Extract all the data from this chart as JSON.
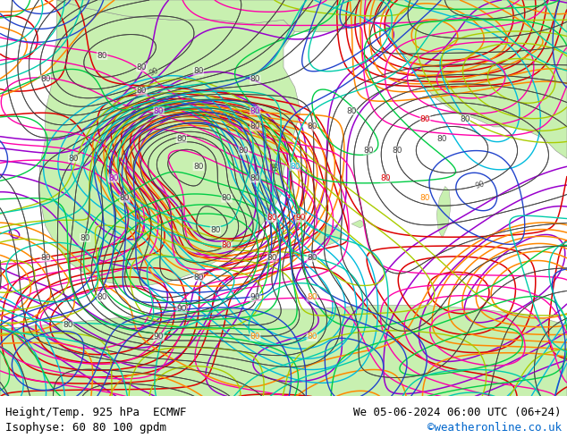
{
  "title_left": "Height/Temp. 925 hPa  ECMWF",
  "title_right": "We 05-06-2024 06:00 UTC (06+24)",
  "subtitle_left": "Isophyse: 60 80 100 gpdm",
  "subtitle_right": "©weatheronline.co.uk",
  "subtitle_right_color": "#0066cc",
  "fig_width": 6.34,
  "fig_height": 4.9,
  "dpi": 100,
  "land_color": "#c8f0b0",
  "sea_color": "#d8d8d8",
  "bottom_bar_color": "#ffffff",
  "title_fontsize": 9.0,
  "subtitle_fontsize": 9.0,
  "contour_color_dark": "#404040",
  "temp_colors": [
    "#8800aa",
    "#cc0000",
    "#ff8800",
    "#00aacc",
    "#cc00cc",
    "#aacc00",
    "#00cc00",
    "#ff44cc",
    "#0044cc",
    "#44cccc"
  ]
}
